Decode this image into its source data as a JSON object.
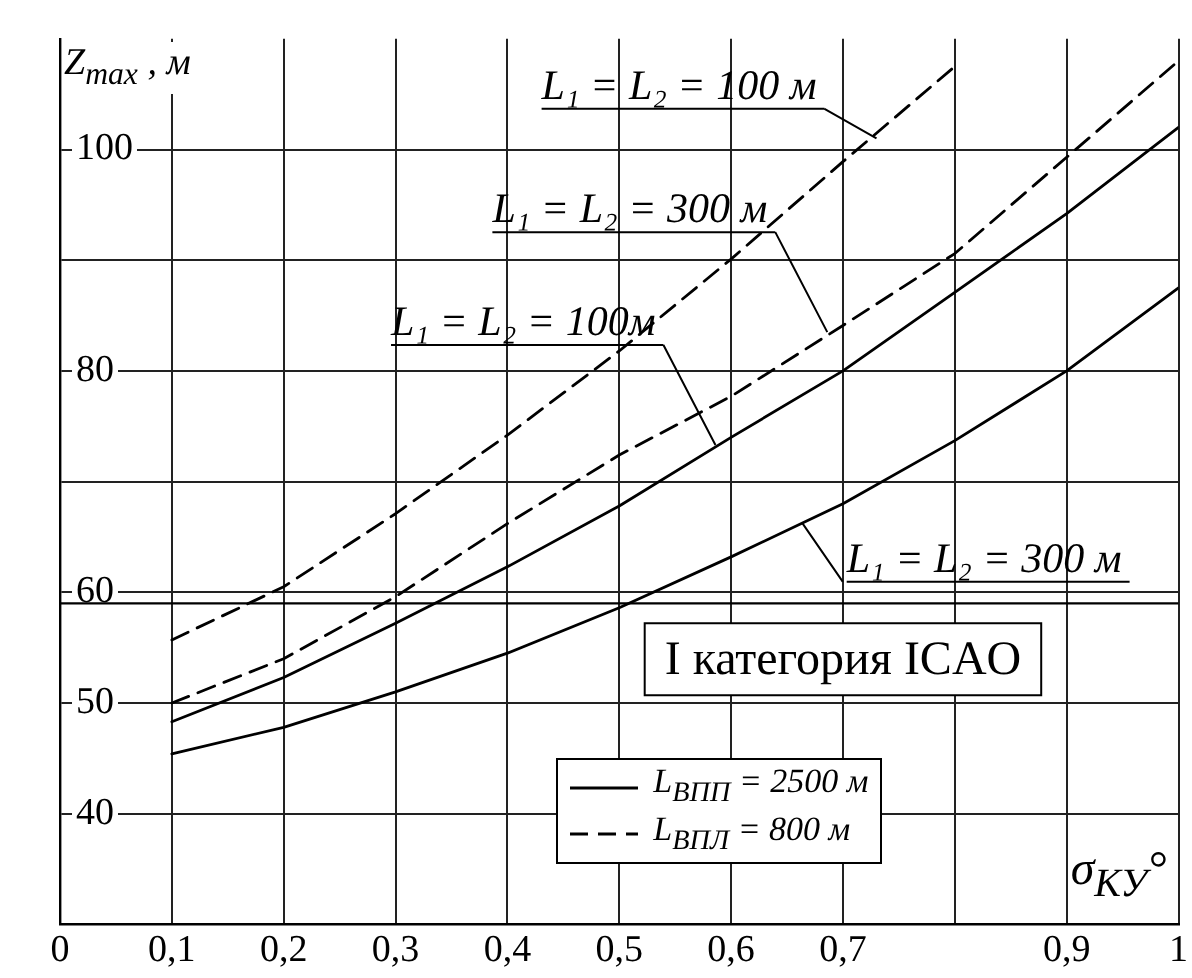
{
  "chart_data": {
    "type": "line",
    "ylabel": "Z$_{max}$ , м",
    "xlabel": "σ$_{КУ}$°",
    "x": [
      0.1,
      0.2,
      0.3,
      0.4,
      0.5,
      0.6,
      0.7,
      0.8,
      0.9,
      1.0
    ],
    "series": [
      {
        "name": "L$_{ВПП}$ = 2500 м",
        "color": "#000000",
        "line_style": "solid",
        "values": [
          45.4,
          47.8,
          51.0,
          54.5,
          58.6,
          63.2,
          68.0,
          73.7,
          80.0,
          87.5
        ]
      },
      {
        "color": "#000000",
        "line_style": "solid",
        "values": [
          48.3,
          52.3,
          57.2,
          62.3,
          67.8,
          74.0,
          80.0,
          87.1,
          94.2,
          102.0
        ]
      },
      {
        "name": "L$_{ВПЛ}$ = 800 м",
        "color": "#000000",
        "line_style": "dashed",
        "values": [
          50.0,
          54.0,
          59.6,
          66.2,
          72.4,
          77.7,
          84.1,
          90.6,
          99.3,
          108.0
        ]
      },
      {
        "color": "#000000",
        "line_style": "dashed",
        "values": [
          55.7,
          60.5,
          67.1,
          74.2,
          81.8,
          90.1,
          98.9,
          107.5,
          null,
          null
        ]
      }
    ],
    "xlim": [
      0,
      1
    ],
    "xticks": [
      0,
      {
        "value": 0.1,
        "label": "0,1"
      },
      {
        "value": 0.2,
        "label": "0,2"
      },
      {
        "value": 0.3,
        "label": "0,3"
      },
      {
        "value": 0.4,
        "label": "0,4"
      },
      {
        "value": 0.5,
        "label": "0,5"
      },
      {
        "value": 0.6,
        "label": "0,6"
      },
      {
        "value": 0.7,
        "label": "0,7"
      },
      {
        "value": 0.8,
        "label": null
      },
      {
        "value": 0.9,
        "label": "0,9"
      },
      1
    ],
    "ylim": [
      30,
      110
    ],
    "yticks": [
      40,
      50,
      60,
      {
        "value": 70,
        "label": null
      },
      80,
      {
        "value": 90,
        "label": null
      },
      100
    ],
    "ref_lines": [
      {
        "axis": "y",
        "value": 59,
        "label": "I категория ICAO",
        "color": "#000000"
      }
    ],
    "annotations": [
      {
        "text": "L₁ = L₂ = 100 м",
        "x": 0.73,
        "y": 101
      },
      {
        "text": "L₁ = L₂ = 300 м",
        "x": 0.686,
        "y": 83.5
      },
      {
        "text": "L₁ = L₂ = 100м",
        "x": 0.586,
        "y": 73.3
      },
      {
        "text": "L₁ = L₂ = 300 м",
        "x": 0.664,
        "y": 66.2
      }
    ],
    "grid": true,
    "legend": "bottom",
    "marker": "none"
  }
}
